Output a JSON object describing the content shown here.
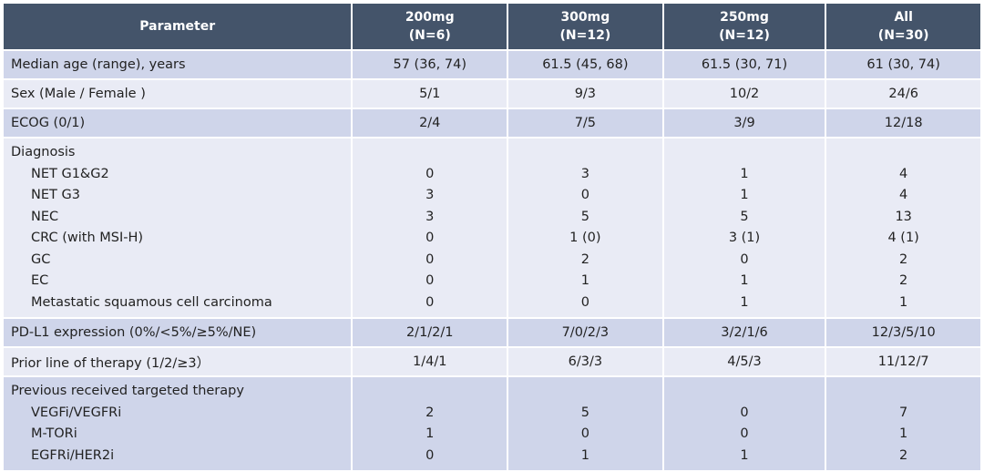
{
  "table": {
    "header": [
      {
        "lines": [
          "Parameter"
        ]
      },
      {
        "lines": [
          "200mg",
          "(N=6)"
        ]
      },
      {
        "lines": [
          "300mg",
          "(N=12)"
        ]
      },
      {
        "lines": [
          "250mg",
          "(N=12)"
        ]
      },
      {
        "lines": [
          "All",
          "(N=30)"
        ]
      }
    ],
    "rows": [
      {
        "label": "Median age (range), years",
        "cells": [
          "57 (36, 74)",
          "61.5 (45, 68)",
          "61.5 (30, 71)",
          "61 (30, 74)"
        ]
      },
      {
        "label": "Sex (Male / Female )",
        "cells": [
          "5/1",
          "9/3",
          "10/2",
          "24/6"
        ]
      },
      {
        "label": "ECOG (0/1)",
        "cells": [
          "2/4",
          "7/5",
          "3/9",
          "12/18"
        ]
      },
      {
        "label": "Diagnosis",
        "items": [
          {
            "label": "NET G1&G2",
            "cells": [
              "0",
              "3",
              "1",
              "4"
            ]
          },
          {
            "label": "NET G3",
            "cells": [
              "3",
              "0",
              "1",
              "4"
            ]
          },
          {
            "label": "NEC",
            "cells": [
              "3",
              "5",
              "5",
              "13"
            ]
          },
          {
            "label": "CRC (with MSI-H)",
            "cells": [
              "0",
              "1 (0)",
              "3 (1)",
              "4 (1)"
            ]
          },
          {
            "label": "GC",
            "cells": [
              "0",
              "2",
              "0",
              "2"
            ]
          },
          {
            "label": "EC",
            "cells": [
              "0",
              "1",
              "1",
              "2"
            ]
          },
          {
            "label": "Metastatic squamous cell carcinoma",
            "cells": [
              "0",
              "0",
              "1",
              "1"
            ]
          }
        ]
      },
      {
        "label": "PD-L1 expression (0%/<5%/≥5%/NE)",
        "cells": [
          "2/1/2/1",
          "7/0/2/3",
          "3/2/1/6",
          "12/3/5/10"
        ]
      },
      {
        "label": "Prior line of therapy (1/2/≥3）",
        "cells": [
          "1/4/1",
          "6/3/3",
          "4/5/3",
          "11/12/7"
        ]
      },
      {
        "label": "Previous received targeted therapy",
        "items": [
          {
            "label": "VEGFi/VEGFRi",
            "cells": [
              "2",
              "5",
              "0",
              "7"
            ]
          },
          {
            "label": "M-TORi",
            "cells": [
              "1",
              "0",
              "0",
              "1"
            ]
          },
          {
            "label": "EGFRi/HER2i",
            "cells": [
              "0",
              "1",
              "1",
              "2"
            ]
          }
        ]
      }
    ]
  }
}
